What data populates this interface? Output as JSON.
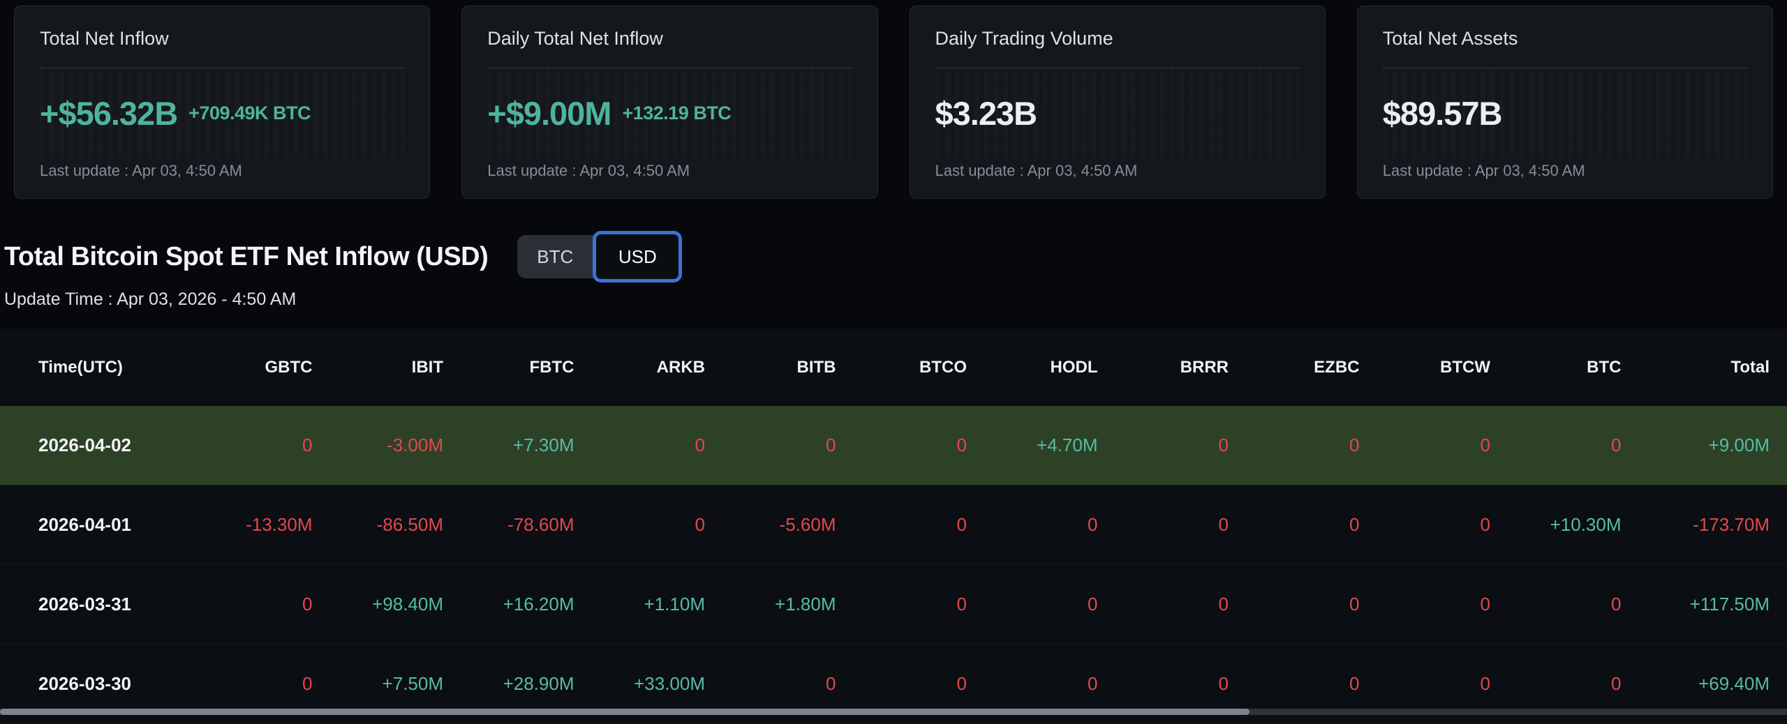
{
  "cards": [
    {
      "title": "Total Net Inflow",
      "value": "+$56.32B",
      "sub_value": "+709.49K BTC",
      "last_update": "Last update : Apr 03, 4:50 AM",
      "value_color": "teal"
    },
    {
      "title": "Daily Total Net Inflow",
      "value": "+$9.00M",
      "sub_value": "+132.19 BTC",
      "last_update": "Last update : Apr 03, 4:50 AM",
      "value_color": "teal"
    },
    {
      "title": "Daily Trading Volume",
      "value": "$3.23B",
      "sub_value": "",
      "last_update": "Last update : Apr 03, 4:50 AM",
      "value_color": "white"
    },
    {
      "title": "Total Net Assets",
      "value": "$89.57B",
      "sub_value": "",
      "last_update": "Last update : Apr 03, 4:50 AM",
      "value_color": "white"
    }
  ],
  "section": {
    "title": "Total Bitcoin Spot ETF Net Inflow (USD)",
    "update_time": "Update Time : Apr 03, 2026 - 4:50 AM",
    "toggle": {
      "options": [
        "BTC",
        "USD"
      ],
      "selected": "USD"
    }
  },
  "table": {
    "columns": [
      "Time(UTC)",
      "GBTC",
      "IBIT",
      "FBTC",
      "ARKB",
      "BITB",
      "BTCO",
      "HODL",
      "BRRR",
      "EZBC",
      "BTCW",
      "BTC",
      "Total"
    ],
    "rows": [
      {
        "date": "2026-04-02",
        "highlighted": true,
        "values": [
          "0",
          "-3.00M",
          "+7.30M",
          "0",
          "0",
          "0",
          "+4.70M",
          "0",
          "0",
          "0",
          "0",
          "+9.00M"
        ]
      },
      {
        "date": "2026-04-01",
        "highlighted": false,
        "values": [
          "-13.30M",
          "-86.50M",
          "-78.60M",
          "0",
          "-5.60M",
          "0",
          "0",
          "0",
          "0",
          "0",
          "+10.30M",
          "-173.70M"
        ]
      },
      {
        "date": "2026-03-31",
        "highlighted": false,
        "values": [
          "0",
          "+98.40M",
          "+16.20M",
          "+1.10M",
          "+1.80M",
          "0",
          "0",
          "0",
          "0",
          "0",
          "0",
          "+117.50M"
        ]
      },
      {
        "date": "2026-03-30",
        "highlighted": false,
        "values": [
          "0",
          "+7.50M",
          "+28.90M",
          "+33.00M",
          "0",
          "0",
          "0",
          "0",
          "0",
          "0",
          "0",
          "+69.40M"
        ]
      }
    ]
  },
  "colors": {
    "positive_teal": "#56bca6",
    "card_value_teal": "#4eb49c",
    "negative_red": "#e2484f",
    "row_highlight_green": "#2d4126",
    "toggle_selected_border": "#3b72d8",
    "card_background": "#14171c",
    "page_background": "#06080c"
  }
}
